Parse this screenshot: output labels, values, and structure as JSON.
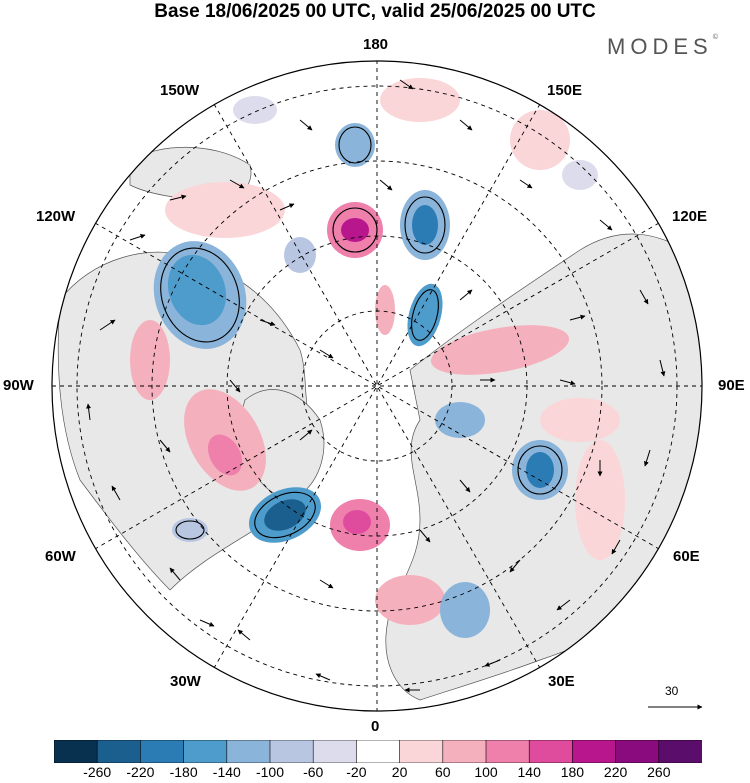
{
  "header": {
    "title": "Base 18/06/2025 00 UTC, valid 25/06/2025 00 UTC",
    "brand": "MODES",
    "brand_mark": "©"
  },
  "map": {
    "projection": "north-polar-stereographic",
    "longitude_labels": {
      "top": "180",
      "bottom": "0",
      "left": "90W",
      "right": "90E",
      "upper_left_1": "150W",
      "upper_left_2": "120W",
      "upper_right_1": "150E",
      "upper_right_2": "120E",
      "lower_left_1": "60W",
      "lower_left_2": "30W",
      "lower_right_1": "60E",
      "lower_right_2": "30E"
    },
    "vector_reference": "30"
  },
  "colorbar": {
    "ticks": [
      "-260",
      "-220",
      "-180",
      "-140",
      "-100",
      "-60",
      "-20",
      "20",
      "60",
      "100",
      "140",
      "180",
      "220",
      "260"
    ],
    "colors": [
      "#08304f",
      "#1a5f8e",
      "#2b7bb4",
      "#4e9ccc",
      "#8ab4d9",
      "#b8c6e2",
      "#dcdcec",
      "#ffffff",
      "#fbd6d8",
      "#f5b0bd",
      "#ee80ab",
      "#df4c9e",
      "#b8168c",
      "#8a0b7d",
      "#5a0d6a"
    ]
  },
  "colors": {
    "land": "#e9e9e9",
    "ocean": "#ffffff",
    "positive": "#f2a7b5",
    "negative": "#4e8dc2"
  }
}
